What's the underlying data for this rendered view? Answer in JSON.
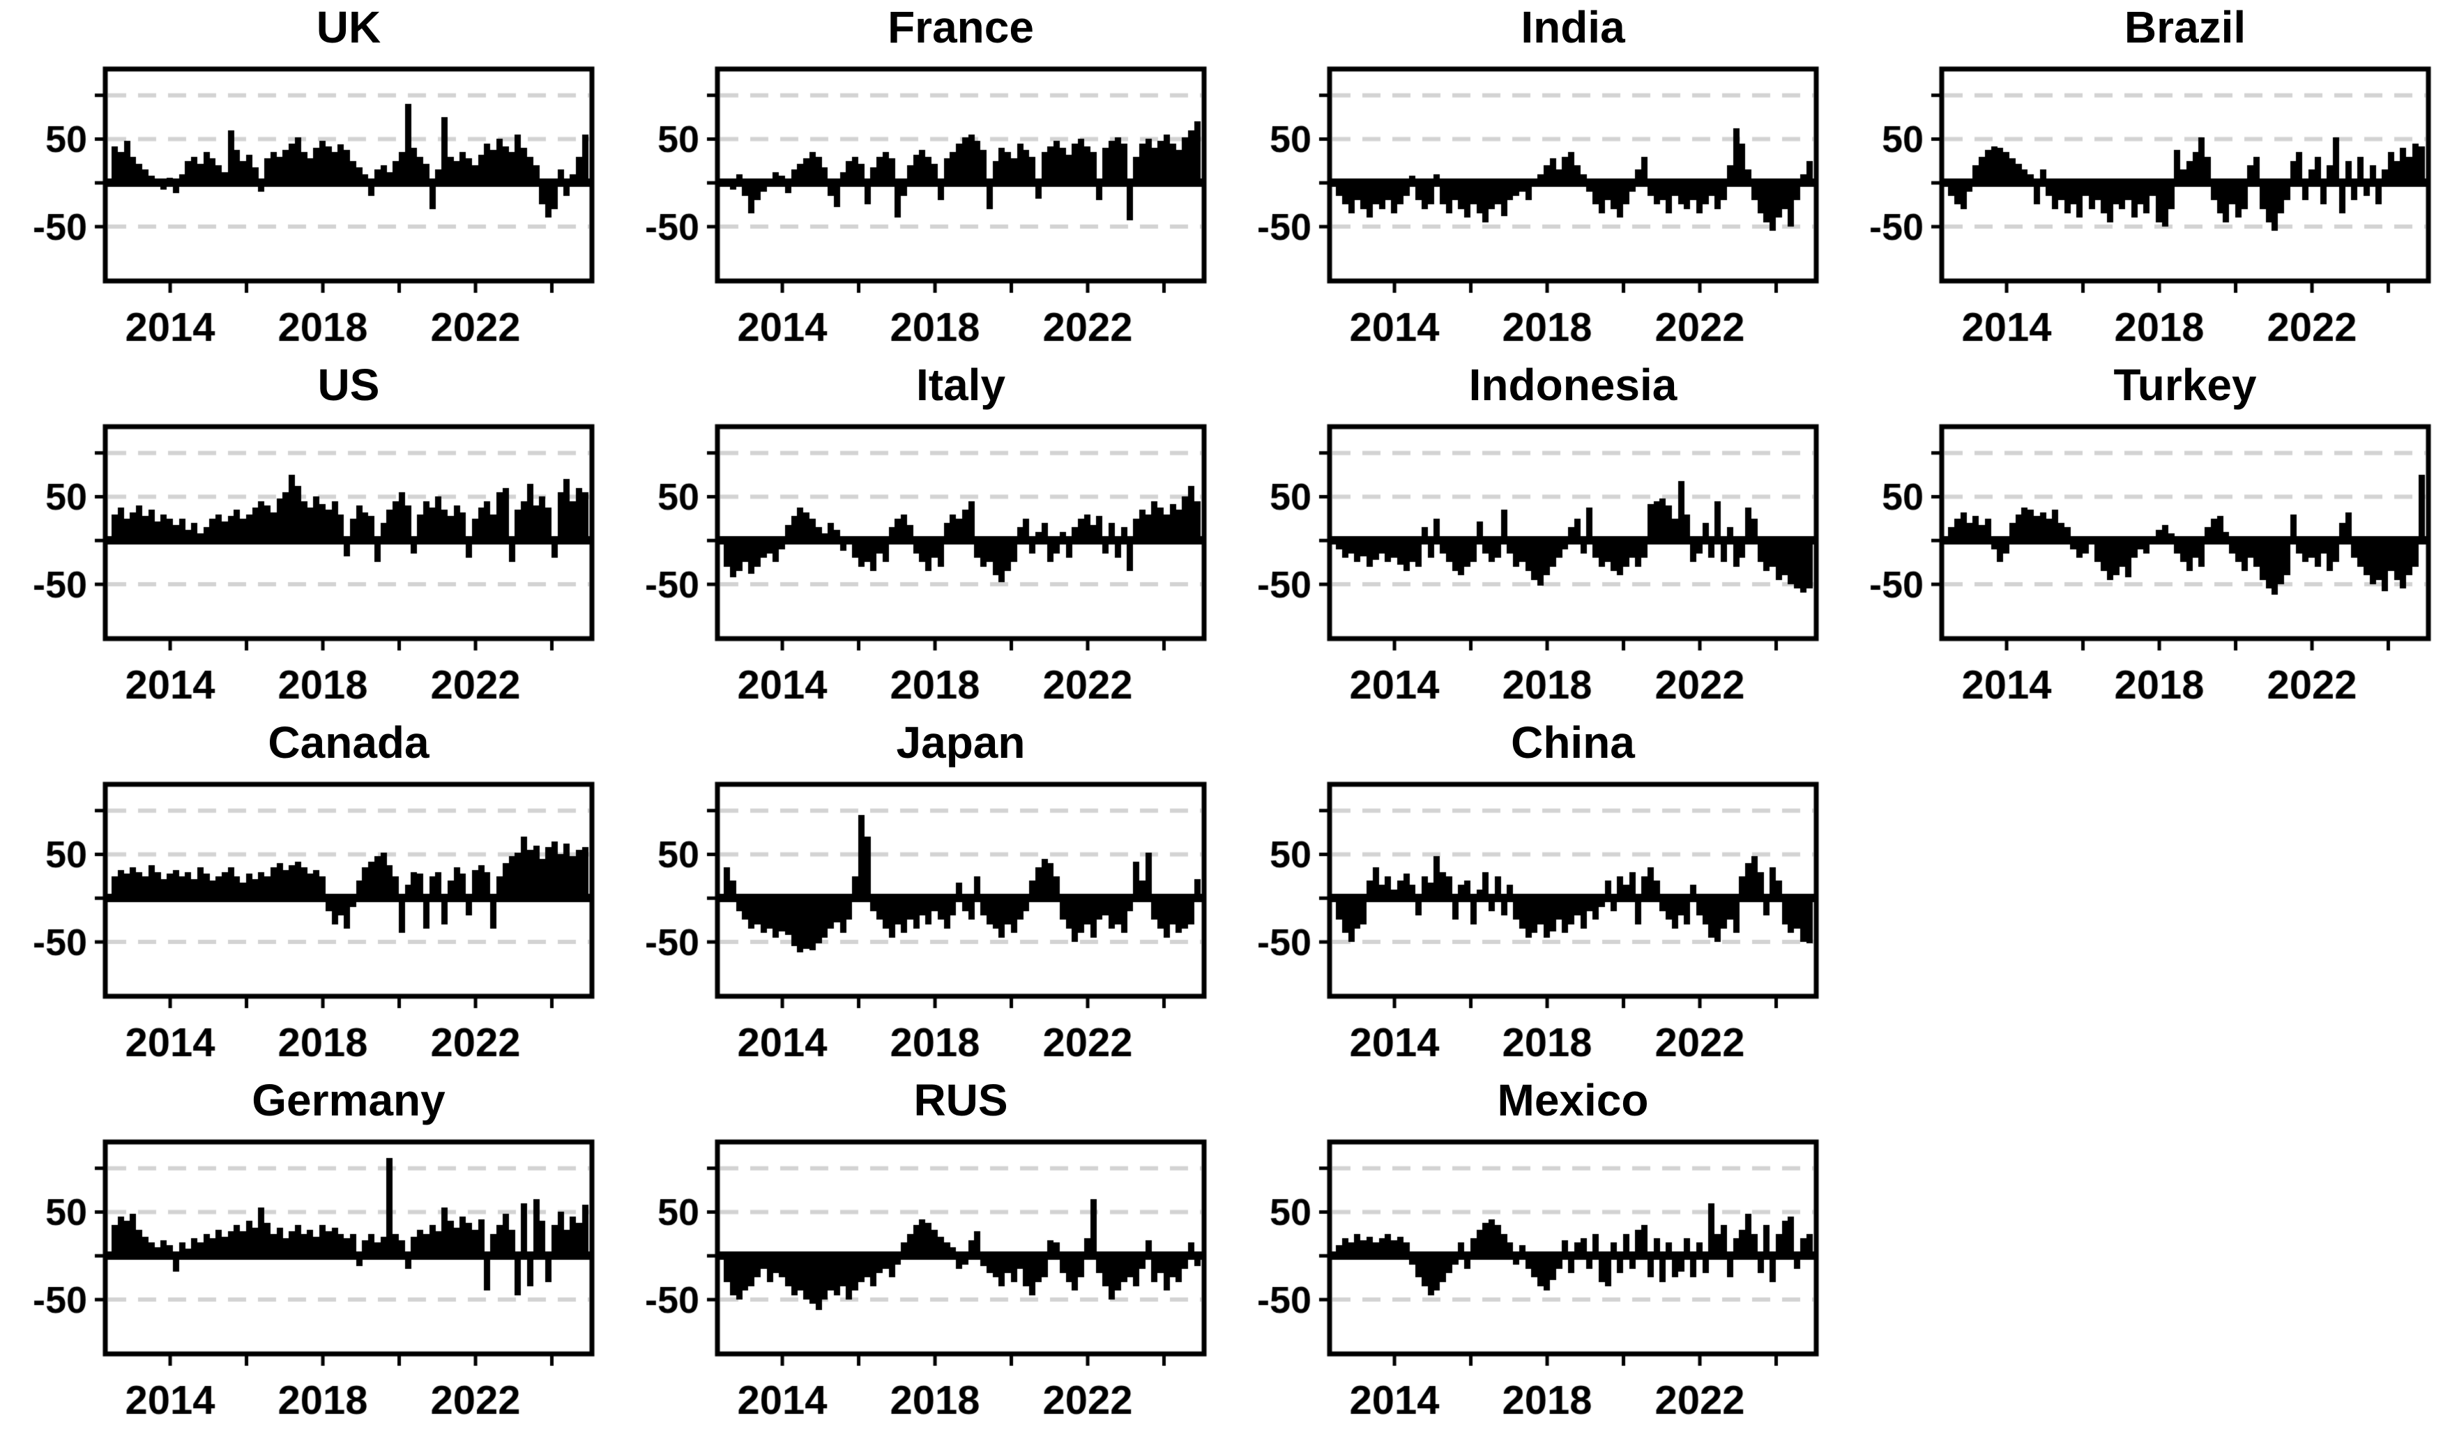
{
  "figure": {
    "background": "#ffffff"
  },
  "chart_data": {
    "type": "bar",
    "title": "",
    "xlabel": "",
    "ylabel": "",
    "x_start": 2012.55,
    "x_step": 0.16,
    "xlim": [
      2012.3,
      2025.05
    ],
    "ylim": [
      -112,
      130
    ],
    "x_ticks": [
      2014,
      2016,
      2018,
      2020,
      2022,
      2024
    ],
    "x_tick_label_years": [
      2014,
      2018,
      2022
    ],
    "y_ticks": [
      100,
      50,
      0,
      -50
    ],
    "y_tick_labels": [
      {
        "value": 50,
        "label": "50"
      },
      {
        "value": -50,
        "label": "-50"
      }
    ],
    "gridlines_y": [
      100,
      50,
      -50
    ],
    "grid_dashed": true,
    "legend": "none",
    "colors": {
      "series": "#000000",
      "axis": "#000000",
      "grid": "#d3d3d3",
      "background": "#ffffff"
    },
    "panels": [
      {
        "id": "uk",
        "title": "UK",
        "values": [
          42,
          35,
          48,
          30,
          22,
          15,
          8,
          5,
          -8,
          6,
          -12,
          10,
          25,
          30,
          22,
          35,
          28,
          20,
          12,
          60,
          38,
          25,
          32,
          18,
          -10,
          28,
          35,
          30,
          38,
          45,
          52,
          35,
          28,
          40,
          48,
          42,
          35,
          44,
          38,
          25,
          18,
          10,
          -15,
          15,
          20,
          12,
          25,
          35,
          90,
          40,
          30,
          22,
          -30,
          15,
          75,
          30,
          25,
          35,
          28,
          20,
          32,
          45,
          38,
          50,
          42,
          35,
          55,
          40,
          30,
          20,
          -25,
          -40,
          -30,
          15,
          -15,
          10,
          30,
          55
        ]
      },
      {
        "id": "france",
        "title": "France",
        "values": [
          5,
          -8,
          10,
          -15,
          -35,
          -20,
          -10,
          5,
          12,
          8,
          -12,
          15,
          22,
          28,
          35,
          30,
          18,
          -15,
          -28,
          12,
          25,
          30,
          22,
          -25,
          18,
          30,
          35,
          28,
          -40,
          -15,
          20,
          32,
          38,
          30,
          22,
          -20,
          28,
          35,
          45,
          52,
          55,
          48,
          38,
          -30,
          25,
          40,
          35,
          28,
          45,
          38,
          30,
          -18,
          35,
          42,
          48,
          40,
          32,
          45,
          50,
          42,
          35,
          -20,
          40,
          48,
          52,
          45,
          -43,
          30,
          45,
          50,
          40,
          48,
          55,
          45,
          38,
          52,
          60,
          70
        ]
      },
      {
        "id": "india",
        "title": "India",
        "values": [
          -15,
          -25,
          -35,
          -20,
          -30,
          -40,
          -25,
          -30,
          -20,
          -35,
          -25,
          -15,
          8,
          -20,
          -30,
          -25,
          10,
          -25,
          -35,
          -20,
          -30,
          -40,
          -25,
          -35,
          -45,
          -30,
          -25,
          -38,
          -20,
          -15,
          -10,
          -20,
          -5,
          10,
          20,
          28,
          15,
          30,
          35,
          20,
          10,
          -10,
          -25,
          -35,
          -20,
          -30,
          -40,
          -25,
          -10,
          15,
          30,
          -15,
          -25,
          -20,
          -35,
          -15,
          -25,
          -30,
          -20,
          -35,
          -25,
          -15,
          -30,
          -20,
          20,
          62,
          45,
          15,
          -20,
          -35,
          -45,
          -55,
          -40,
          -30,
          -50,
          -20,
          10,
          25
        ]
      },
      {
        "id": "brazil",
        "title": "Brazil",
        "values": [
          -15,
          -25,
          -30,
          -10,
          20,
          30,
          38,
          42,
          40,
          35,
          28,
          22,
          15,
          10,
          -25,
          15,
          -15,
          -30,
          -20,
          -35,
          -25,
          -40,
          -15,
          -30,
          -20,
          -35,
          -45,
          -25,
          -30,
          -20,
          -40,
          -25,
          -35,
          -15,
          -45,
          -50,
          -30,
          38,
          15,
          25,
          35,
          52,
          30,
          -20,
          -35,
          -45,
          -25,
          -40,
          -30,
          20,
          30,
          -30,
          -45,
          -55,
          -35,
          -20,
          25,
          35,
          -20,
          15,
          30,
          -25,
          20,
          52,
          -35,
          25,
          -20,
          30,
          -15,
          20,
          -25,
          15,
          35,
          25,
          40,
          30,
          45,
          42
        ]
      },
      {
        "id": "us",
        "title": "US",
        "values": [
          30,
          38,
          25,
          32,
          40,
          28,
          35,
          22,
          30,
          25,
          18,
          25,
          12,
          20,
          8,
          15,
          25,
          30,
          22,
          28,
          35,
          25,
          30,
          38,
          45,
          40,
          32,
          48,
          55,
          75,
          62,
          45,
          38,
          50,
          42,
          35,
          45,
          30,
          -18,
          25,
          40,
          32,
          28,
          -25,
          20,
          35,
          45,
          55,
          40,
          -15,
          30,
          45,
          38,
          50,
          35,
          28,
          40,
          32,
          -20,
          25,
          38,
          45,
          30,
          55,
          60,
          -25,
          35,
          45,
          65,
          40,
          50,
          38,
          -20,
          55,
          70,
          45,
          60,
          55
        ]
      },
      {
        "id": "italy",
        "title": "Italy",
        "values": [
          -30,
          -42,
          -35,
          -25,
          -38,
          -30,
          -20,
          -15,
          -25,
          -10,
          18,
          28,
          38,
          32,
          25,
          15,
          8,
          20,
          12,
          -12,
          5,
          -20,
          -30,
          -25,
          -35,
          -15,
          -25,
          15,
          25,
          30,
          18,
          -15,
          -25,
          -35,
          -20,
          -30,
          20,
          30,
          25,
          35,
          45,
          -20,
          -30,
          -25,
          -40,
          -48,
          -35,
          -25,
          15,
          25,
          -15,
          10,
          20,
          -25,
          -15,
          10,
          -20,
          15,
          25,
          30,
          18,
          28,
          -15,
          20,
          -20,
          15,
          -35,
          25,
          35,
          30,
          45,
          38,
          30,
          42,
          35,
          50,
          62,
          45
        ]
      },
      {
        "id": "indonesia",
        "title": "Indonesia",
        "values": [
          -10,
          -20,
          -15,
          -25,
          -18,
          -30,
          -22,
          -15,
          -25,
          -20,
          -28,
          -35,
          -25,
          -30,
          15,
          -20,
          25,
          -15,
          -25,
          -35,
          -40,
          -30,
          -25,
          22,
          -15,
          -25,
          -20,
          35,
          -15,
          -30,
          -25,
          -35,
          -45,
          -52,
          -40,
          -30,
          -20,
          -10,
          15,
          25,
          -15,
          38,
          -20,
          -30,
          -25,
          -35,
          -40,
          -30,
          -20,
          -30,
          -20,
          42,
          45,
          48,
          40,
          25,
          68,
          30,
          -25,
          -15,
          20,
          -20,
          45,
          -25,
          15,
          -30,
          -20,
          38,
          25,
          -25,
          -35,
          -30,
          -45,
          -40,
          -50,
          -55,
          -60,
          -55
        ]
      },
      {
        "id": "turkey",
        "title": "Turkey",
        "values": [
          15,
          25,
          32,
          20,
          28,
          18,
          25,
          -10,
          -25,
          -15,
          20,
          30,
          38,
          35,
          28,
          32,
          25,
          35,
          20,
          15,
          -10,
          -20,
          -15,
          -5,
          -25,
          -35,
          -45,
          -40,
          -30,
          -42,
          -20,
          -10,
          -15,
          -5,
          12,
          18,
          8,
          -15,
          -25,
          -35,
          -20,
          -30,
          15,
          25,
          28,
          10,
          -15,
          -25,
          -35,
          -20,
          -30,
          -45,
          -55,
          -62,
          -50,
          -40,
          30,
          -15,
          -25,
          -20,
          -30,
          -15,
          -35,
          -25,
          20,
          32,
          -20,
          -30,
          -40,
          -50,
          -45,
          -58,
          -35,
          -45,
          -55,
          -40,
          -30,
          75
        ]
      },
      {
        "id": "canada",
        "title": "Canada",
        "values": [
          25,
          32,
          28,
          35,
          30,
          25,
          38,
          30,
          22,
          28,
          32,
          25,
          30,
          22,
          35,
          28,
          20,
          25,
          30,
          35,
          25,
          18,
          28,
          22,
          30,
          25,
          35,
          40,
          32,
          38,
          42,
          35,
          28,
          32,
          25,
          -15,
          -30,
          -20,
          -35,
          -10,
          20,
          35,
          42,
          48,
          52,
          38,
          25,
          -40,
          15,
          30,
          28,
          -35,
          25,
          30,
          -30,
          20,
          35,
          28,
          -20,
          32,
          38,
          30,
          -35,
          25,
          40,
          48,
          52,
          70,
          55,
          60,
          45,
          58,
          65,
          50,
          62,
          48,
          55,
          58
        ]
      },
      {
        "id": "japan",
        "title": "Japan",
        "values": [
          35,
          20,
          -15,
          -25,
          -35,
          -30,
          -40,
          -35,
          -45,
          -38,
          -42,
          -55,
          -62,
          -58,
          -60,
          -52,
          -45,
          -35,
          -28,
          -40,
          -25,
          25,
          95,
          70,
          -15,
          -25,
          -35,
          -45,
          -30,
          -40,
          -25,
          -35,
          -20,
          -30,
          -15,
          -25,
          -35,
          -20,
          18,
          -15,
          -25,
          25,
          -20,
          -30,
          -35,
          -45,
          -30,
          -40,
          -25,
          -15,
          20,
          35,
          45,
          40,
          25,
          -25,
          -35,
          -50,
          -40,
          -30,
          -45,
          -25,
          -20,
          -35,
          -30,
          -40,
          -15,
          42,
          20,
          52,
          -25,
          -35,
          -45,
          -30,
          -40,
          -35,
          -30,
          22
        ]
      },
      {
        "id": "china",
        "title": "China",
        "values": [
          -25,
          -40,
          -50,
          -35,
          -30,
          20,
          35,
          15,
          25,
          10,
          20,
          28,
          15,
          -20,
          25,
          18,
          48,
          30,
          25,
          -25,
          15,
          20,
          -30,
          10,
          30,
          -15,
          25,
          -20,
          15,
          -25,
          -35,
          -45,
          -40,
          -30,
          -45,
          -38,
          -25,
          -40,
          -30,
          -20,
          -35,
          -15,
          -25,
          -10,
          20,
          -15,
          25,
          15,
          30,
          -30,
          25,
          35,
          20,
          -15,
          -25,
          -35,
          -20,
          -30,
          15,
          -20,
          -30,
          -45,
          -50,
          -35,
          -25,
          -40,
          25,
          40,
          48,
          30,
          -20,
          35,
          20,
          -30,
          -40,
          -35,
          -50,
          -52
        ]
      },
      {
        "id": "germany",
        "title": "Germany",
        "values": [
          35,
          45,
          40,
          48,
          30,
          22,
          15,
          10,
          18,
          12,
          -18,
          15,
          8,
          20,
          15,
          25,
          20,
          30,
          22,
          28,
          35,
          28,
          40,
          32,
          55,
          38,
          25,
          32,
          20,
          28,
          35,
          25,
          30,
          22,
          35,
          28,
          32,
          25,
          20,
          25,
          -12,
          18,
          25,
          15,
          22,
          112,
          25,
          18,
          -15,
          22,
          30,
          25,
          35,
          28,
          55,
          40,
          32,
          45,
          38,
          30,
          42,
          -40,
          25,
          35,
          48,
          30,
          -45,
          60,
          -35,
          65,
          40,
          -30,
          35,
          50,
          30,
          45,
          38,
          58
        ]
      },
      {
        "id": "rus",
        "title": "RUS",
        "values": [
          -30,
          -45,
          -50,
          -40,
          -35,
          -25,
          -15,
          -30,
          -20,
          -25,
          -35,
          -45,
          -40,
          -50,
          -55,
          -62,
          -50,
          -40,
          -45,
          -35,
          -50,
          -40,
          -30,
          -25,
          -35,
          -20,
          -15,
          -25,
          -10,
          15,
          25,
          35,
          42,
          38,
          30,
          22,
          15,
          10,
          -15,
          -10,
          18,
          28,
          -12,
          -20,
          -25,
          -35,
          -20,
          -30,
          -15,
          -35,
          -45,
          -30,
          -25,
          18,
          15,
          -20,
          -30,
          -40,
          -25,
          20,
          65,
          -20,
          -35,
          -50,
          -40,
          -30,
          -25,
          -35,
          -15,
          18,
          -30,
          -20,
          -40,
          -25,
          -30,
          -15,
          15,
          -12
        ]
      },
      {
        "id": "mexico",
        "title": "Mexico",
        "values": [
          12,
          20,
          15,
          25,
          18,
          22,
          15,
          20,
          25,
          18,
          22,
          15,
          -10,
          -25,
          -35,
          -45,
          -40,
          -30,
          -20,
          -10,
          15,
          -15,
          20,
          30,
          38,
          42,
          35,
          25,
          15,
          -10,
          12,
          -15,
          -25,
          -35,
          -40,
          -28,
          -15,
          18,
          -20,
          15,
          20,
          -15,
          25,
          -30,
          -35,
          15,
          -20,
          25,
          -15,
          30,
          35,
          -25,
          20,
          -30,
          15,
          -25,
          -18,
          20,
          -25,
          15,
          -20,
          60,
          25,
          35,
          -25,
          20,
          30,
          48,
          25,
          -20,
          35,
          -30,
          25,
          40,
          45,
          -15,
          20,
          25
        ]
      }
    ]
  }
}
